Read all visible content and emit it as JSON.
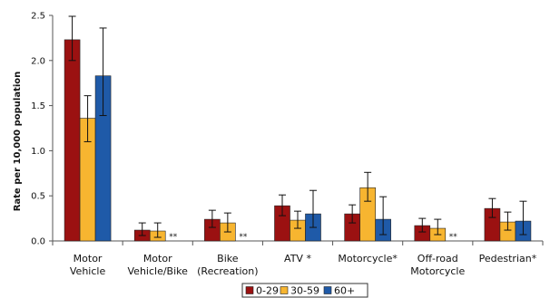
{
  "chart_data": {
    "type": "bar",
    "title": "",
    "xlabel": "",
    "ylabel": "Rate per 10,000 population",
    "ylim": [
      0,
      2.5
    ],
    "yticks": [
      "0.0",
      "0.5",
      "1.0",
      "1.5",
      "2.0",
      "2.5"
    ],
    "grid": false,
    "legend_position": "bottom",
    "categories": [
      [
        "Motor",
        "Vehicle"
      ],
      [
        "Motor",
        "Vehicle/Bike"
      ],
      [
        "Bike",
        "(Recreation)"
      ],
      [
        "ATV *"
      ],
      [
        "Motorcycle*"
      ],
      [
        "Off-road",
        "Motorcycle"
      ],
      [
        "Pedestrian*"
      ]
    ],
    "series": [
      {
        "name": "0-29",
        "color": "#9b1111",
        "values": [
          2.23,
          0.12,
          0.24,
          0.39,
          0.3,
          0.17,
          0.36
        ],
        "error_low": [
          2.0,
          0.06,
          0.15,
          0.28,
          0.2,
          0.1,
          0.26
        ],
        "error_high": [
          2.49,
          0.2,
          0.34,
          0.51,
          0.4,
          0.25,
          0.47
        ]
      },
      {
        "name": "30-59",
        "color": "#f7b530",
        "values": [
          1.36,
          0.11,
          0.2,
          0.23,
          0.59,
          0.14,
          0.21
        ],
        "error_low": [
          1.1,
          0.04,
          0.1,
          0.14,
          0.44,
          0.07,
          0.12
        ],
        "error_high": [
          1.61,
          0.2,
          0.31,
          0.33,
          0.76,
          0.24,
          0.32
        ]
      },
      {
        "name": "60+",
        "color": "#1f5aa8",
        "values": [
          1.83,
          null,
          null,
          0.3,
          0.24,
          null,
          0.22
        ],
        "error_low": [
          1.39,
          null,
          null,
          0.15,
          0.07,
          null,
          0.07
        ],
        "error_high": [
          2.36,
          null,
          null,
          0.56,
          0.49,
          null,
          0.44
        ]
      }
    ],
    "missing_marker": "**"
  }
}
